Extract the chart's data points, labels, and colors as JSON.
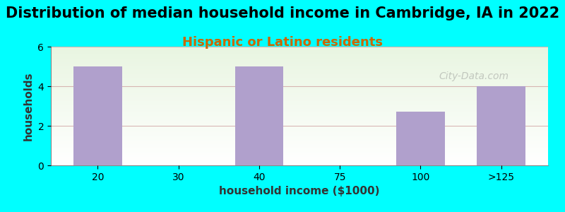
{
  "title": "Distribution of median household income in Cambridge, IA in 2022",
  "subtitle": "Hispanic or Latino residents",
  "xlabel": "household income ($1000)",
  "ylabel": "households",
  "background_color": "#00FFFF",
  "bar_color": "#B0A0CC",
  "categories": [
    "20",
    "30",
    "40",
    "75",
    "100",
    ">125"
  ],
  "values": [
    5,
    0,
    5,
    0,
    2.7,
    4
  ],
  "ylim": [
    0,
    6
  ],
  "yticks": [
    0,
    2,
    4,
    6
  ],
  "title_fontsize": 15,
  "subtitle_fontsize": 13,
  "subtitle_color": "#CC6600",
  "axis_label_fontsize": 11,
  "tick_fontsize": 10,
  "watermark": "City-Data.com"
}
